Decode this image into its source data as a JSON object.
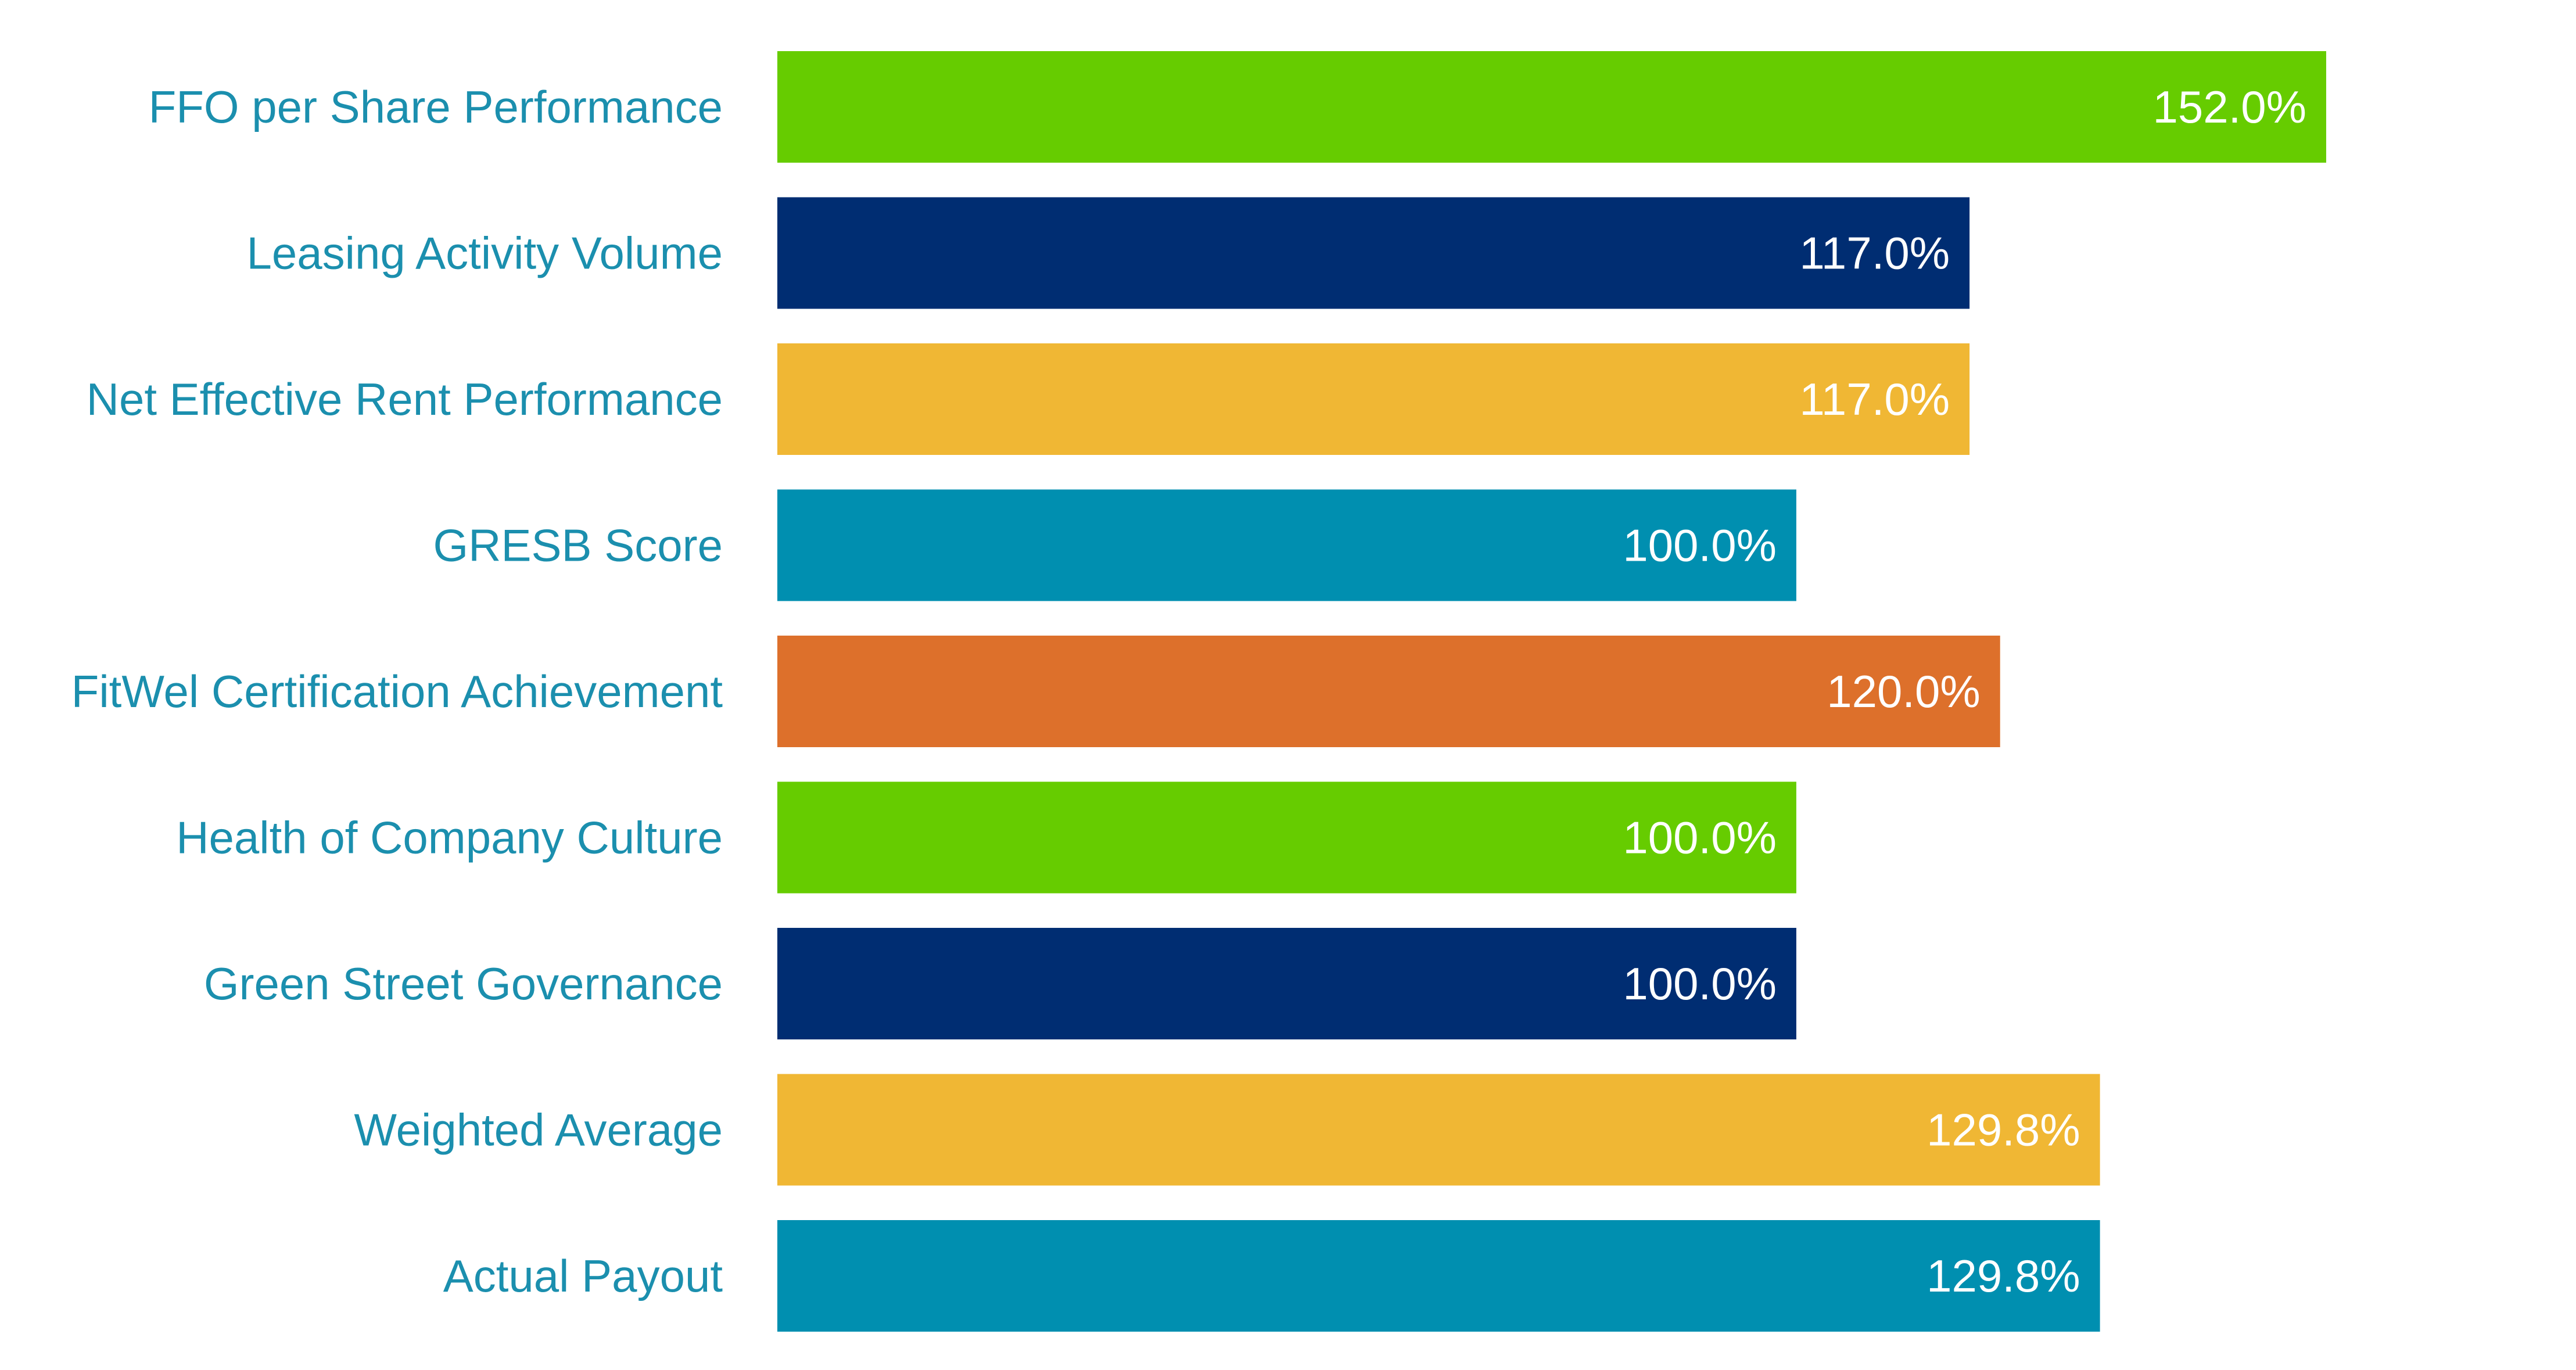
{
  "chart_data": {
    "type": "bar",
    "orientation": "horizontal",
    "categories": [
      "FFO per Share Performance",
      "Leasing Activity Volume",
      "Net Effective Rent Performance",
      "GRESB Score",
      "FitWel Certification Achievement",
      "Health of Company Culture",
      "Green Street Governance",
      "Weighted Average",
      "Actual Payout"
    ],
    "values": [
      152.0,
      117.0,
      117.0,
      100.0,
      120.0,
      100.0,
      100.0,
      129.8,
      129.8
    ],
    "value_labels": [
      "152.0%",
      "117.0%",
      "117.0%",
      "100.0%",
      "120.0%",
      "100.0%",
      "100.0%",
      "129.8%",
      "129.8%"
    ],
    "colors": [
      "#66cc00",
      "#002d72",
      "#f0b734",
      "#008fb0",
      "#dd702b",
      "#66cc00",
      "#002d72",
      "#f0b734",
      "#008fb0"
    ],
    "label_color": "#1b8fae",
    "value_label_color": "#ffffff",
    "title": "",
    "xlabel": "",
    "ylabel": "",
    "xlim": [
      0,
      152.0
    ],
    "grid": false,
    "legend": "none"
  }
}
